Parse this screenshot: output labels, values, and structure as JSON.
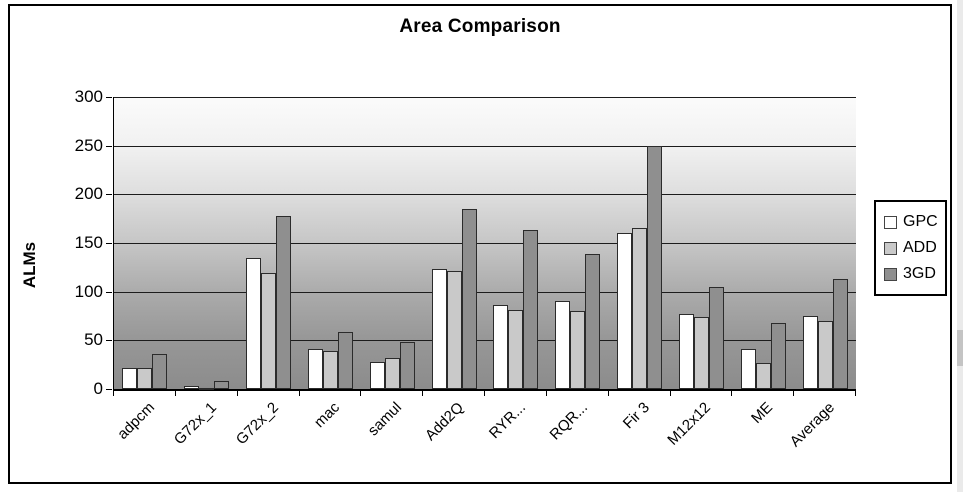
{
  "title": "Area Comparison",
  "y_axis": {
    "label": "ALMs",
    "tick_labels": [
      "0",
      "50",
      "100",
      "150",
      "200",
      "250",
      "300"
    ]
  },
  "legend": {
    "entries": [
      "GPC",
      "ADD",
      "3GD"
    ]
  },
  "chart_data": {
    "type": "bar",
    "title": "Area Comparison",
    "xlabel": "",
    "ylabel": "ALMs",
    "ylim": [
      0,
      300
    ],
    "y_tick_step": 50,
    "grid": true,
    "legend_position": "right",
    "plot_background": "gradient-white-to-gray",
    "categories": [
      "adpcm",
      "G72x_1",
      "G72x_2",
      "mac",
      "samul",
      "Add2Q",
      "RYR...",
      "RQR...",
      "Fir 3",
      "M12x12",
      "ME",
      "Average"
    ],
    "series": [
      {
        "name": "GPC",
        "color": "#ffffff",
        "values": [
          22,
          3,
          135,
          41,
          28,
          123,
          86,
          90,
          160,
          77,
          41,
          75
        ]
      },
      {
        "name": "ADD",
        "color": "#c9c9c9",
        "values": [
          22,
          1,
          119,
          39,
          32,
          121,
          81,
          80,
          165,
          74,
          27,
          70
        ]
      },
      {
        "name": "3GD",
        "color": "#8f8f8f",
        "values": [
          36,
          8,
          178,
          59,
          48,
          185,
          163,
          139,
          250,
          105,
          68,
          113
        ]
      }
    ]
  }
}
